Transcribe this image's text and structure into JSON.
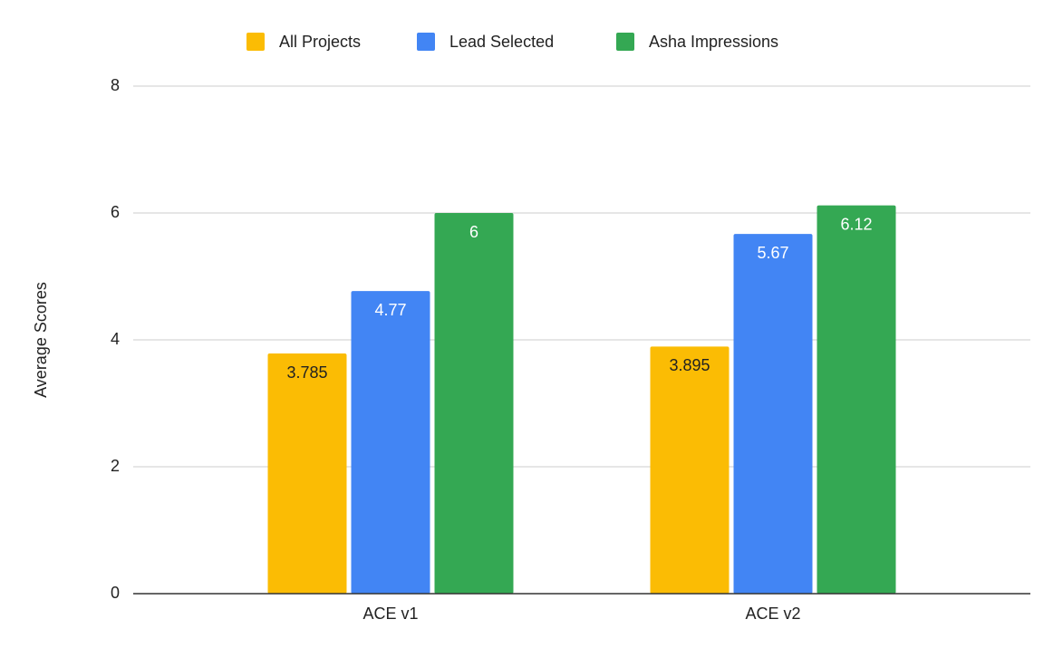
{
  "chart_data": {
    "type": "bar",
    "y_label": "Average Scores",
    "categories": [
      "ACE v1",
      "ACE v2"
    ],
    "series": [
      {
        "name": "All Projects",
        "color": "#fbbc04",
        "values": [
          3.785,
          3.895
        ]
      },
      {
        "name": "Lead Selected",
        "color": "#4285f4",
        "values": [
          4.77,
          5.67
        ]
      },
      {
        "name": "Asha Impressions",
        "color": "#34a853",
        "values": [
          6,
          6.12
        ]
      }
    ],
    "ylim": [
      0,
      8
    ],
    "yticks": [
      0,
      2,
      4,
      6,
      8
    ],
    "grid": true,
    "legend": "top"
  }
}
